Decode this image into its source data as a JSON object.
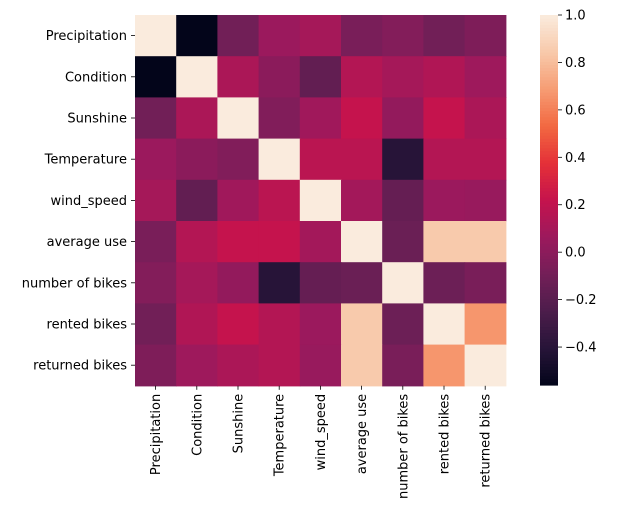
{
  "chart_data": {
    "type": "heatmap",
    "title": "",
    "xlabel": "",
    "ylabel": "",
    "row_labels": [
      "Precipitation",
      "Condition",
      "Sunshine",
      "Temperature",
      "wind_speed",
      "average use",
      "number of bikes",
      "rented bikes",
      "returned bikes"
    ],
    "col_labels": [
      "Precipitation",
      "Condition",
      "Sunshine",
      "Temperature",
      "wind_speed",
      "average use",
      "number of bikes",
      "rented bikes",
      "returned bikes"
    ],
    "values": [
      [
        1.0,
        -0.56,
        -0.1,
        0.06,
        0.1,
        -0.07,
        -0.03,
        -0.1,
        -0.05
      ],
      [
        -0.56,
        1.0,
        0.12,
        0.0,
        -0.16,
        0.15,
        0.1,
        0.14,
        0.07
      ],
      [
        -0.1,
        0.12,
        1.0,
        -0.04,
        0.08,
        0.22,
        0.03,
        0.22,
        0.12
      ],
      [
        0.06,
        0.0,
        -0.04,
        1.0,
        0.18,
        0.18,
        -0.4,
        0.15,
        0.15
      ],
      [
        0.1,
        -0.16,
        0.08,
        0.18,
        1.0,
        0.09,
        -0.15,
        0.06,
        0.05
      ],
      [
        -0.07,
        0.15,
        0.22,
        0.22,
        0.09,
        1.0,
        -0.13,
        0.85,
        0.85
      ],
      [
        -0.03,
        0.1,
        0.03,
        -0.4,
        -0.15,
        -0.13,
        1.0,
        -0.12,
        -0.07
      ],
      [
        -0.1,
        0.14,
        0.22,
        0.15,
        0.06,
        0.85,
        -0.12,
        1.0,
        0.67
      ],
      [
        -0.05,
        0.07,
        0.12,
        0.15,
        0.05,
        0.85,
        -0.07,
        0.67,
        1.0
      ]
    ],
    "colorbar": {
      "min": -0.56,
      "max": 1.0,
      "ticks": [
        -0.4,
        -0.2,
        0.0,
        0.2,
        0.4,
        0.6,
        0.8,
        1.0
      ],
      "tick_labels": [
        "−0.4",
        "−0.2",
        "0.0",
        "0.2",
        "0.4",
        "0.6",
        "0.8",
        "1.0"
      ]
    },
    "colormap": "rocket",
    "grid": false,
    "legend": "colorbar-right"
  }
}
